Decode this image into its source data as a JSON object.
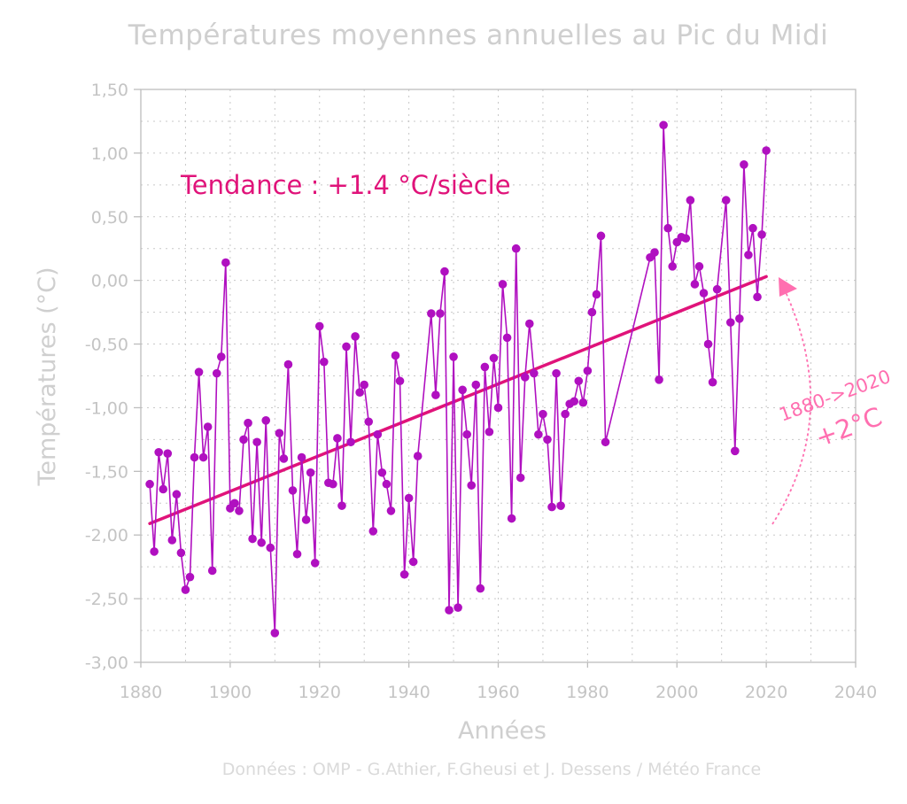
{
  "page": {
    "title": "Températures moyennes annuelles au Pic du Midi",
    "footer": "Données : OMP - G.Athier, F.Gheusi et J. Dessens / Météo France"
  },
  "chart_data": {
    "type": "line",
    "title": "Températures moyennes annuelles au Pic du Midi",
    "xlabel": "Années",
    "ylabel": "Températures (°C)",
    "xlim": [
      1880,
      2040
    ],
    "ylim": [
      -3.0,
      1.5
    ],
    "xticks": [
      "1880",
      "1900",
      "1920",
      "1940",
      "1960",
      "1980",
      "2000",
      "2020",
      "2040"
    ],
    "yticks": [
      "1,50",
      "1,00",
      "0,50",
      "0,00",
      "-0,50",
      "-1,00",
      "-1,50",
      "-2,00",
      "-2,50",
      "-3,00"
    ],
    "grid": true,
    "series": [
      {
        "color": "#b010c0",
        "x": [
          1882,
          1883,
          1884,
          1885,
          1886,
          1887,
          1888,
          1889,
          1890,
          1891,
          1892,
          1893,
          1894,
          1895,
          1896,
          1897,
          1898,
          1899,
          1900,
          1901,
          1902,
          1903,
          1904,
          1905,
          1906,
          1907,
          1908,
          1909,
          1910,
          1911,
          1912,
          1913,
          1914,
          1915,
          1916,
          1917,
          1918,
          1919,
          1920,
          1921,
          1922,
          1923,
          1924,
          1925,
          1926,
          1927,
          1928,
          1929,
          1930,
          1931,
          1932,
          1933,
          1934,
          1935,
          1936,
          1937,
          1938,
          1939,
          1940,
          1941,
          1942,
          1945,
          1946,
          1947,
          1948,
          1949,
          1950,
          1951,
          1952,
          1953,
          1954,
          1955,
          1956,
          1957,
          1958,
          1959,
          1960,
          1961,
          1962,
          1963,
          1964,
          1965,
          1966,
          1967,
          1968,
          1969,
          1970,
          1971,
          1972,
          1973,
          1974,
          1975,
          1976,
          1977,
          1978,
          1979,
          1980,
          1981,
          1982,
          1983,
          1984,
          1994,
          1995,
          1996,
          1997,
          1998,
          1999,
          2000,
          2001,
          2002,
          2003,
          2004,
          2005,
          2006,
          2007,
          2008,
          2009,
          2011,
          2012,
          2013,
          2014,
          2015,
          2016,
          2017,
          2018,
          2019,
          2020
        ],
        "y": [
          -1.6,
          -2.13,
          -1.35,
          -1.64,
          -1.36,
          -2.04,
          -1.68,
          -2.14,
          -2.43,
          -2.33,
          -1.39,
          -0.72,
          -1.39,
          -1.15,
          -2.28,
          -0.73,
          -0.6,
          0.14,
          -1.79,
          -1.75,
          -1.81,
          -1.25,
          -1.12,
          -2.03,
          -1.27,
          -2.06,
          -1.1,
          -2.1,
          -2.77,
          -1.2,
          -1.4,
          -0.66,
          -1.65,
          -2.15,
          -1.39,
          -1.88,
          -1.51,
          -2.22,
          -0.36,
          -0.64,
          -1.59,
          -1.6,
          -1.24,
          -1.77,
          -0.52,
          -1.27,
          -0.44,
          -0.88,
          -0.82,
          -1.11,
          -1.97,
          -1.21,
          -1.51,
          -1.6,
          -1.81,
          -0.59,
          -0.79,
          -2.31,
          -1.71,
          -2.21,
          -1.38,
          -0.26,
          -0.9,
          -0.26,
          0.07,
          -2.59,
          -0.6,
          -2.57,
          -0.86,
          -1.21,
          -1.61,
          -0.82,
          -2.42,
          -0.68,
          -1.19,
          -0.61,
          -1.0,
          -0.03,
          -0.45,
          -1.87,
          0.25,
          -1.55,
          -0.76,
          -0.34,
          -0.73,
          -1.21,
          -1.05,
          -1.25,
          -1.78,
          -0.73,
          -1.77,
          -1.05,
          -0.97,
          -0.95,
          -0.79,
          -0.96,
          -0.71,
          -0.25,
          -0.11,
          0.35,
          -1.27,
          0.18,
          0.22,
          -0.78,
          1.22,
          0.41,
          0.11,
          0.3,
          0.34,
          0.33,
          0.63,
          -0.03,
          0.11,
          -0.1,
          -0.5,
          -0.8,
          -0.07,
          0.63,
          -0.33,
          -1.34,
          -0.3,
          0.91,
          0.2,
          0.41,
          -0.13,
          0.36,
          1.02
        ]
      }
    ],
    "trend": {
      "label": "Tendance  : +1.4 °C/siècle",
      "color": "#e0137a",
      "x": [
        1882,
        2020
      ],
      "y": [
        -1.91,
        0.03
      ]
    },
    "annotation": {
      "line1": "1880->2020",
      "line2": "+2°C",
      "color": "#ff6fb0"
    }
  }
}
